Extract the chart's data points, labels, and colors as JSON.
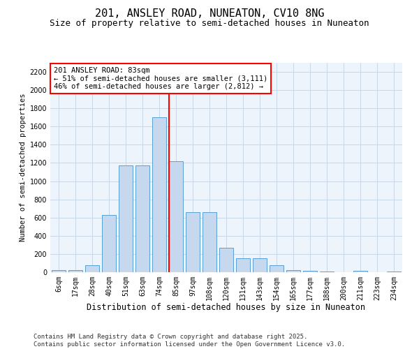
{
  "title": "201, ANSLEY ROAD, NUNEATON, CV10 8NG",
  "subtitle": "Size of property relative to semi-detached houses in Nuneaton",
  "xlabel": "Distribution of semi-detached houses by size in Nuneaton",
  "ylabel": "Number of semi-detached properties",
  "footer_line1": "Contains HM Land Registry data © Crown copyright and database right 2025.",
  "footer_line2": "Contains public sector information licensed under the Open Government Licence v3.0.",
  "bar_labels": [
    "6sqm",
    "17sqm",
    "28sqm",
    "40sqm",
    "51sqm",
    "63sqm",
    "74sqm",
    "85sqm",
    "97sqm",
    "108sqm",
    "120sqm",
    "131sqm",
    "143sqm",
    "154sqm",
    "165sqm",
    "177sqm",
    "188sqm",
    "200sqm",
    "211sqm",
    "223sqm",
    "234sqm"
  ],
  "bar_values": [
    20,
    20,
    80,
    630,
    1170,
    1170,
    1700,
    1220,
    660,
    660,
    270,
    155,
    155,
    80,
    25,
    15,
    5,
    2,
    15,
    2,
    5
  ],
  "bar_color": "#c5d8ed",
  "bar_edge_color": "#5a9fd4",
  "grid_color": "#c8d8e8",
  "background_color": "#eef4fb",
  "vline_x_index": 7,
  "vline_color": "red",
  "annotation_text": "201 ANSLEY ROAD: 83sqm\n← 51% of semi-detached houses are smaller (3,111)\n46% of semi-detached houses are larger (2,812) →",
  "annotation_box_color": "white",
  "annotation_box_edge": "red",
  "ylim": [
    0,
    2300
  ],
  "yticks": [
    0,
    200,
    400,
    600,
    800,
    1000,
    1200,
    1400,
    1600,
    1800,
    2000,
    2200
  ],
  "title_fontsize": 11,
  "subtitle_fontsize": 9,
  "xlabel_fontsize": 8.5,
  "ylabel_fontsize": 7.5,
  "tick_fontsize": 7,
  "footer_fontsize": 6.5,
  "annotation_fontsize": 7.5
}
